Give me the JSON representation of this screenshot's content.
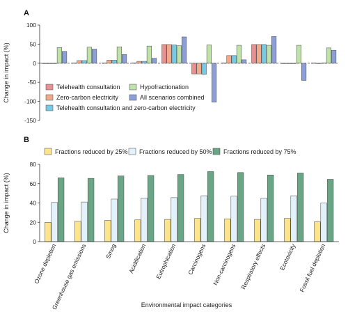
{
  "xlabel_shared": "Environmental impact categories",
  "chart_data": [
    {
      "panel": "A",
      "type": "bar",
      "ylabel": "Change in impact (%)",
      "ylim": [
        -150,
        100
      ],
      "yticks": [
        -150,
        -100,
        -50,
        0,
        50,
        100
      ],
      "zero_line": "dashed",
      "grid": false,
      "legend_position": "bottom-left",
      "categories": [
        "Ozone depletion",
        "Greenhouse gas emissions",
        "Smog",
        "Acidification",
        "Eutrophication",
        "Carcinogens",
        "Non-carcinogens",
        "Respiratory effects",
        "Ecotoxicity",
        "Fossil fuel depletion"
      ],
      "series": [
        {
          "name": "Telehealth consultation",
          "color": "#e99090",
          "values": [
            0,
            1,
            1,
            1,
            49,
            -28,
            1,
            49,
            -1,
            1
          ]
        },
        {
          "name": "Zero-carbon electricity",
          "color": "#f1a98c",
          "values": [
            0,
            7,
            8,
            5,
            49,
            -28,
            20,
            49,
            -1,
            0
          ]
        },
        {
          "name": "Telehealth consultation and zero-carbon electricity",
          "color": "#79c9e5",
          "values": [
            0,
            7,
            8,
            5,
            48,
            -29,
            20,
            49,
            -1,
            1
          ]
        },
        {
          "name": "Hypofractionation",
          "color": "#bfe2a8",
          "values": [
            41,
            42,
            43,
            45,
            46,
            48,
            47,
            47,
            47,
            40
          ]
        },
        {
          "name": "All scenarios combined",
          "color": "#8c9ed6",
          "values": [
            31,
            37,
            23,
            13,
            69,
            -102,
            9,
            70,
            -45,
            34
          ]
        }
      ],
      "legend_layout": [
        [
          "Telehealth consultation",
          "Hypofractionation"
        ],
        [
          "Zero-carbon electricity",
          "All scenarios combined"
        ],
        [
          "Telehealth consultation and zero-carbon electricity"
        ]
      ]
    },
    {
      "panel": "B",
      "type": "bar",
      "ylabel": "Change in impact (%)",
      "xlabel": "Environmental impact categories",
      "ylim": [
        0,
        80
      ],
      "yticks": [
        0,
        20,
        40,
        60,
        80
      ],
      "grid": false,
      "legend_position": "top",
      "categories": [
        "Ozone depletion",
        "Greenhouse gas emissions",
        "Smog",
        "Acidification",
        "Eutrophication",
        "Carcinogens",
        "Non-carcinogens",
        "Respiratory effects",
        "Ecotoxicity",
        "Fossil fuel depletion"
      ],
      "series": [
        {
          "name": "Fractions reduced by 25%",
          "color": "#fbe48c",
          "values": [
            20,
            21,
            22,
            22.5,
            23,
            24,
            23.5,
            23,
            24,
            20.5
          ]
        },
        {
          "name": "Fractions reduced by 50%",
          "color": "#e3f2fa",
          "values": [
            40.5,
            41,
            44,
            45,
            45.5,
            47.5,
            47,
            45,
            47.5,
            40
          ]
        },
        {
          "name": "Fractions reduced by 75%",
          "color": "#6aa686",
          "values": [
            66,
            65.5,
            68,
            68.5,
            69.5,
            72.5,
            71.5,
            69,
            71,
            64.5
          ]
        }
      ]
    }
  ]
}
